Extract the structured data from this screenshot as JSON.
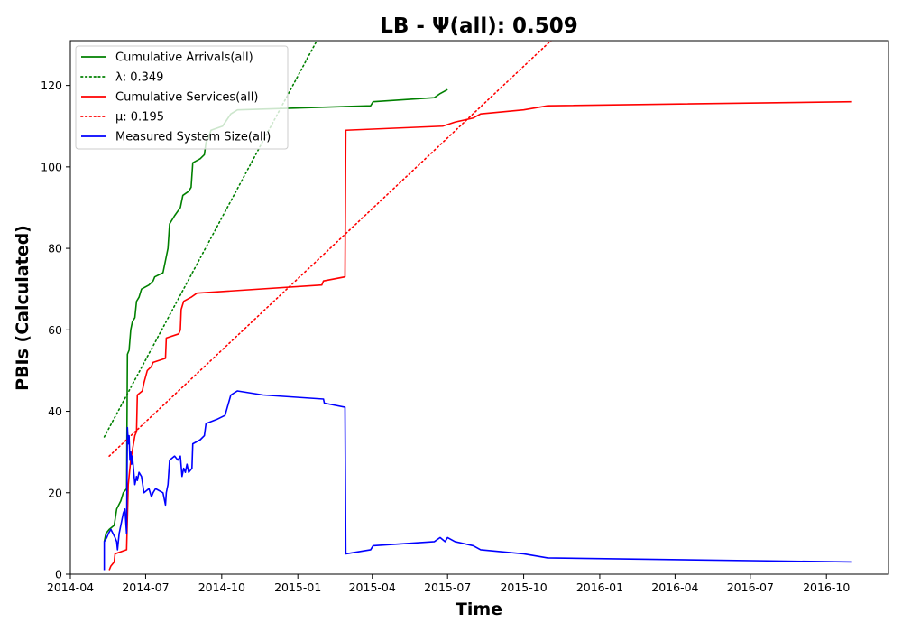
{
  "chart_data": {
    "type": "line",
    "title": "LB -  Ψ(all): 0.509",
    "xlabel": "Time",
    "ylabel": "PBIs (Calculated)",
    "xlim": [
      "2014-04-01",
      "2016-12-15"
    ],
    "ylim": [
      0,
      131
    ],
    "x_ticks": [
      "2014-04",
      "2014-07",
      "2014-10",
      "2015-01",
      "2015-04",
      "2015-07",
      "2015-10",
      "2016-01",
      "2016-04",
      "2016-07",
      "2016-10"
    ],
    "y_ticks": [
      0,
      20,
      40,
      60,
      80,
      100,
      120
    ],
    "grid": false,
    "legend_position": "top-left",
    "series": [
      {
        "name": "Cumulative Arrivals(all)",
        "color": "#008000",
        "style": "solid",
        "points": [
          [
            "2014-05-12",
            8
          ],
          [
            "2014-05-14",
            10
          ],
          [
            "2014-05-18",
            11
          ],
          [
            "2014-05-24",
            12
          ],
          [
            "2014-05-27",
            16
          ],
          [
            "2014-06-01",
            18
          ],
          [
            "2014-06-04",
            20
          ],
          [
            "2014-06-08",
            21
          ],
          [
            "2014-06-09",
            54
          ],
          [
            "2014-06-11",
            55
          ],
          [
            "2014-06-13",
            60
          ],
          [
            "2014-06-15",
            62
          ],
          [
            "2014-06-18",
            63
          ],
          [
            "2014-06-20",
            67
          ],
          [
            "2014-06-23",
            68
          ],
          [
            "2014-06-26",
            70
          ],
          [
            "2014-07-05",
            71
          ],
          [
            "2014-07-10",
            72
          ],
          [
            "2014-07-12",
            73
          ],
          [
            "2014-07-22",
            74
          ],
          [
            "2014-07-25",
            77
          ],
          [
            "2014-07-28",
            80
          ],
          [
            "2014-07-30",
            86
          ],
          [
            "2014-08-05",
            88
          ],
          [
            "2014-08-12",
            90
          ],
          [
            "2014-08-15",
            93
          ],
          [
            "2014-08-22",
            94
          ],
          [
            "2014-08-25",
            95
          ],
          [
            "2014-08-27",
            101
          ],
          [
            "2014-09-05",
            102
          ],
          [
            "2014-09-10",
            103
          ],
          [
            "2014-09-12",
            106
          ],
          [
            "2014-09-15",
            107
          ],
          [
            "2014-09-18",
            109
          ],
          [
            "2014-10-02",
            110
          ],
          [
            "2014-10-12",
            113
          ],
          [
            "2014-10-20",
            114
          ],
          [
            "2015-03-30",
            115
          ],
          [
            "2015-04-02",
            116
          ],
          [
            "2015-06-15",
            117
          ],
          [
            "2015-06-22",
            118
          ],
          [
            "2015-07-01",
            119
          ]
        ]
      },
      {
        "name": "λ: 0.349",
        "color": "#008000",
        "style": "dotted",
        "points": [
          [
            "2014-05-12",
            33.7
          ],
          [
            "2015-01-24",
            131
          ]
        ]
      },
      {
        "name": "Cumulative Services(all)",
        "color": "#ff0000",
        "style": "solid",
        "points": [
          [
            "2014-05-18",
            1
          ],
          [
            "2014-05-20",
            2
          ],
          [
            "2014-05-24",
            3
          ],
          [
            "2014-05-25",
            5
          ],
          [
            "2014-06-08",
            6
          ],
          [
            "2014-06-10",
            22
          ],
          [
            "2014-06-13",
            28
          ],
          [
            "2014-06-18",
            34
          ],
          [
            "2014-06-20",
            35
          ],
          [
            "2014-06-21",
            44
          ],
          [
            "2014-06-27",
            45
          ],
          [
            "2014-06-29",
            47
          ],
          [
            "2014-07-03",
            50
          ],
          [
            "2014-07-08",
            51
          ],
          [
            "2014-07-10",
            52
          ],
          [
            "2014-07-25",
            53
          ],
          [
            "2014-07-26",
            58
          ],
          [
            "2014-08-10",
            59
          ],
          [
            "2014-08-12",
            60
          ],
          [
            "2014-08-13",
            65
          ],
          [
            "2014-08-16",
            67
          ],
          [
            "2014-08-25",
            68
          ],
          [
            "2014-09-01",
            69
          ],
          [
            "2015-01-30",
            71
          ],
          [
            "2015-02-01",
            72
          ],
          [
            "2015-02-27",
            73
          ],
          [
            "2015-02-28",
            109
          ],
          [
            "2015-06-25",
            110
          ],
          [
            "2015-07-10",
            111
          ],
          [
            "2015-08-01",
            112
          ],
          [
            "2015-08-10",
            113
          ],
          [
            "2015-10-01",
            114
          ],
          [
            "2015-10-30",
            115
          ],
          [
            "2016-11-01",
            116
          ]
        ]
      },
      {
        "name": "μ: 0.195",
        "color": "#ff0000",
        "style": "dotted",
        "points": [
          [
            "2014-05-18",
            29
          ],
          [
            "2015-11-03",
            131
          ]
        ]
      },
      {
        "name": "Measured System Size(all)",
        "color": "#0000ff",
        "style": "solid",
        "points": [
          [
            "2014-05-12",
            1
          ],
          [
            "2014-05-12",
            8
          ],
          [
            "2014-05-15",
            9
          ],
          [
            "2014-05-17",
            10
          ],
          [
            "2014-05-20",
            11
          ],
          [
            "2014-05-25",
            9
          ],
          [
            "2014-05-27",
            8
          ],
          [
            "2014-05-28",
            6
          ],
          [
            "2014-05-30",
            10
          ],
          [
            "2014-06-02",
            13
          ],
          [
            "2014-06-04",
            15
          ],
          [
            "2014-06-06",
            16
          ],
          [
            "2014-06-08",
            10
          ],
          [
            "2014-06-09",
            36
          ],
          [
            "2014-06-10",
            32
          ],
          [
            "2014-06-11",
            34
          ],
          [
            "2014-06-12",
            28
          ],
          [
            "2014-06-13",
            30
          ],
          [
            "2014-06-14",
            27
          ],
          [
            "2014-06-15",
            29
          ],
          [
            "2014-06-18",
            22
          ],
          [
            "2014-06-20",
            24
          ],
          [
            "2014-06-21",
            23
          ],
          [
            "2014-06-23",
            25
          ],
          [
            "2014-06-26",
            24
          ],
          [
            "2014-06-29",
            20
          ],
          [
            "2014-07-05",
            21
          ],
          [
            "2014-07-08",
            19
          ],
          [
            "2014-07-10",
            20
          ],
          [
            "2014-07-13",
            21
          ],
          [
            "2014-07-22",
            20
          ],
          [
            "2014-07-25",
            17
          ],
          [
            "2014-07-26",
            20
          ],
          [
            "2014-07-28",
            22
          ],
          [
            "2014-07-30",
            28
          ],
          [
            "2014-08-05",
            29
          ],
          [
            "2014-08-09",
            28
          ],
          [
            "2014-08-12",
            29
          ],
          [
            "2014-08-14",
            24
          ],
          [
            "2014-08-16",
            26
          ],
          [
            "2014-08-18",
            25
          ],
          [
            "2014-08-20",
            27
          ],
          [
            "2014-08-22",
            25
          ],
          [
            "2014-08-26",
            26
          ],
          [
            "2014-08-27",
            32
          ],
          [
            "2014-09-05",
            33
          ],
          [
            "2014-09-10",
            34
          ],
          [
            "2014-09-12",
            37
          ],
          [
            "2014-09-25",
            38
          ],
          [
            "2014-10-05",
            39
          ],
          [
            "2014-10-12",
            44
          ],
          [
            "2014-10-20",
            45
          ],
          [
            "2014-11-20",
            44
          ],
          [
            "2015-02-01",
            43
          ],
          [
            "2015-02-02",
            42
          ],
          [
            "2015-02-27",
            41
          ],
          [
            "2015-02-28",
            5
          ],
          [
            "2015-03-30",
            6
          ],
          [
            "2015-04-02",
            7
          ],
          [
            "2015-06-15",
            8
          ],
          [
            "2015-06-22",
            9
          ],
          [
            "2015-06-28",
            8
          ],
          [
            "2015-07-01",
            9
          ],
          [
            "2015-07-10",
            8
          ],
          [
            "2015-08-01",
            7
          ],
          [
            "2015-08-10",
            6
          ],
          [
            "2015-10-01",
            5
          ],
          [
            "2015-10-30",
            4
          ],
          [
            "2016-11-01",
            3
          ]
        ]
      }
    ]
  }
}
